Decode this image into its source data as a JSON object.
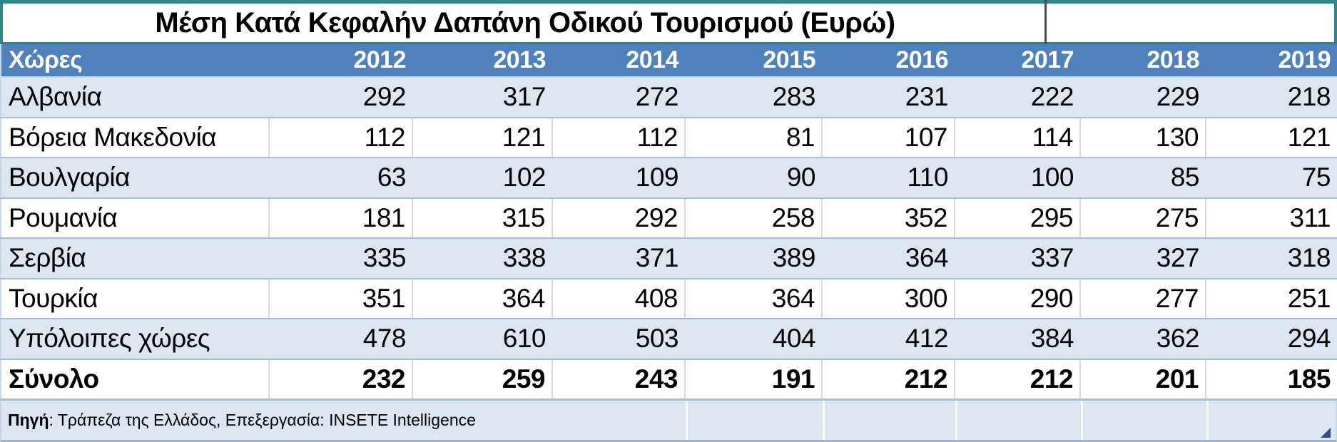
{
  "title": "Μέση Κατά Κεφαλήν Δαπάνη Οδικού Τουρισμού (Ευρώ)",
  "chart_data": {
    "type": "table",
    "title": "Μέση Κατά Κεφαλήν Δαπάνη Οδικού Τουρισμού (Ευρώ)",
    "columns": [
      "Χώρες",
      "2012",
      "2013",
      "2014",
      "2015",
      "2016",
      "2017",
      "2018",
      "2019"
    ],
    "rows": [
      {
        "country": "Αλβανία",
        "values": [
          292,
          317,
          272,
          283,
          231,
          222,
          229,
          218
        ],
        "band": true,
        "total": false
      },
      {
        "country": "Βόρεια Μακεδονία",
        "values": [
          112,
          121,
          112,
          81,
          107,
          114,
          130,
          121
        ],
        "band": false,
        "total": false
      },
      {
        "country": "Βουλγαρία",
        "values": [
          63,
          102,
          109,
          90,
          110,
          100,
          85,
          75
        ],
        "band": true,
        "total": false
      },
      {
        "country": "Ρουμανία",
        "values": [
          181,
          315,
          292,
          258,
          352,
          295,
          275,
          311
        ],
        "band": false,
        "total": false
      },
      {
        "country": "Σερβία",
        "values": [
          335,
          338,
          371,
          389,
          364,
          337,
          327,
          318
        ],
        "band": true,
        "total": false
      },
      {
        "country": "Τουρκία",
        "values": [
          351,
          364,
          408,
          364,
          300,
          290,
          277,
          251
        ],
        "band": false,
        "total": false
      },
      {
        "country": "Υπόλοιπες χώρες",
        "values": [
          478,
          610,
          503,
          404,
          412,
          384,
          362,
          294
        ],
        "band": true,
        "total": false
      },
      {
        "country": "Σύνολο",
        "values": [
          232,
          259,
          243,
          191,
          212,
          212,
          201,
          185
        ],
        "band": false,
        "total": true
      }
    ]
  },
  "footer": {
    "label": "Πηγή",
    "text": ": Τράπεζα της Ελλάδος, Επεξεργασία: INSETE Intelligence"
  },
  "colors": {
    "header_bg": "#4F81BD",
    "band_bg": "#DCE6F1",
    "row_divider": "#A5BCDA",
    "cell_divider": "#D9D9D9",
    "title_border": "#2E8686",
    "handle": "#2C4E8E"
  }
}
